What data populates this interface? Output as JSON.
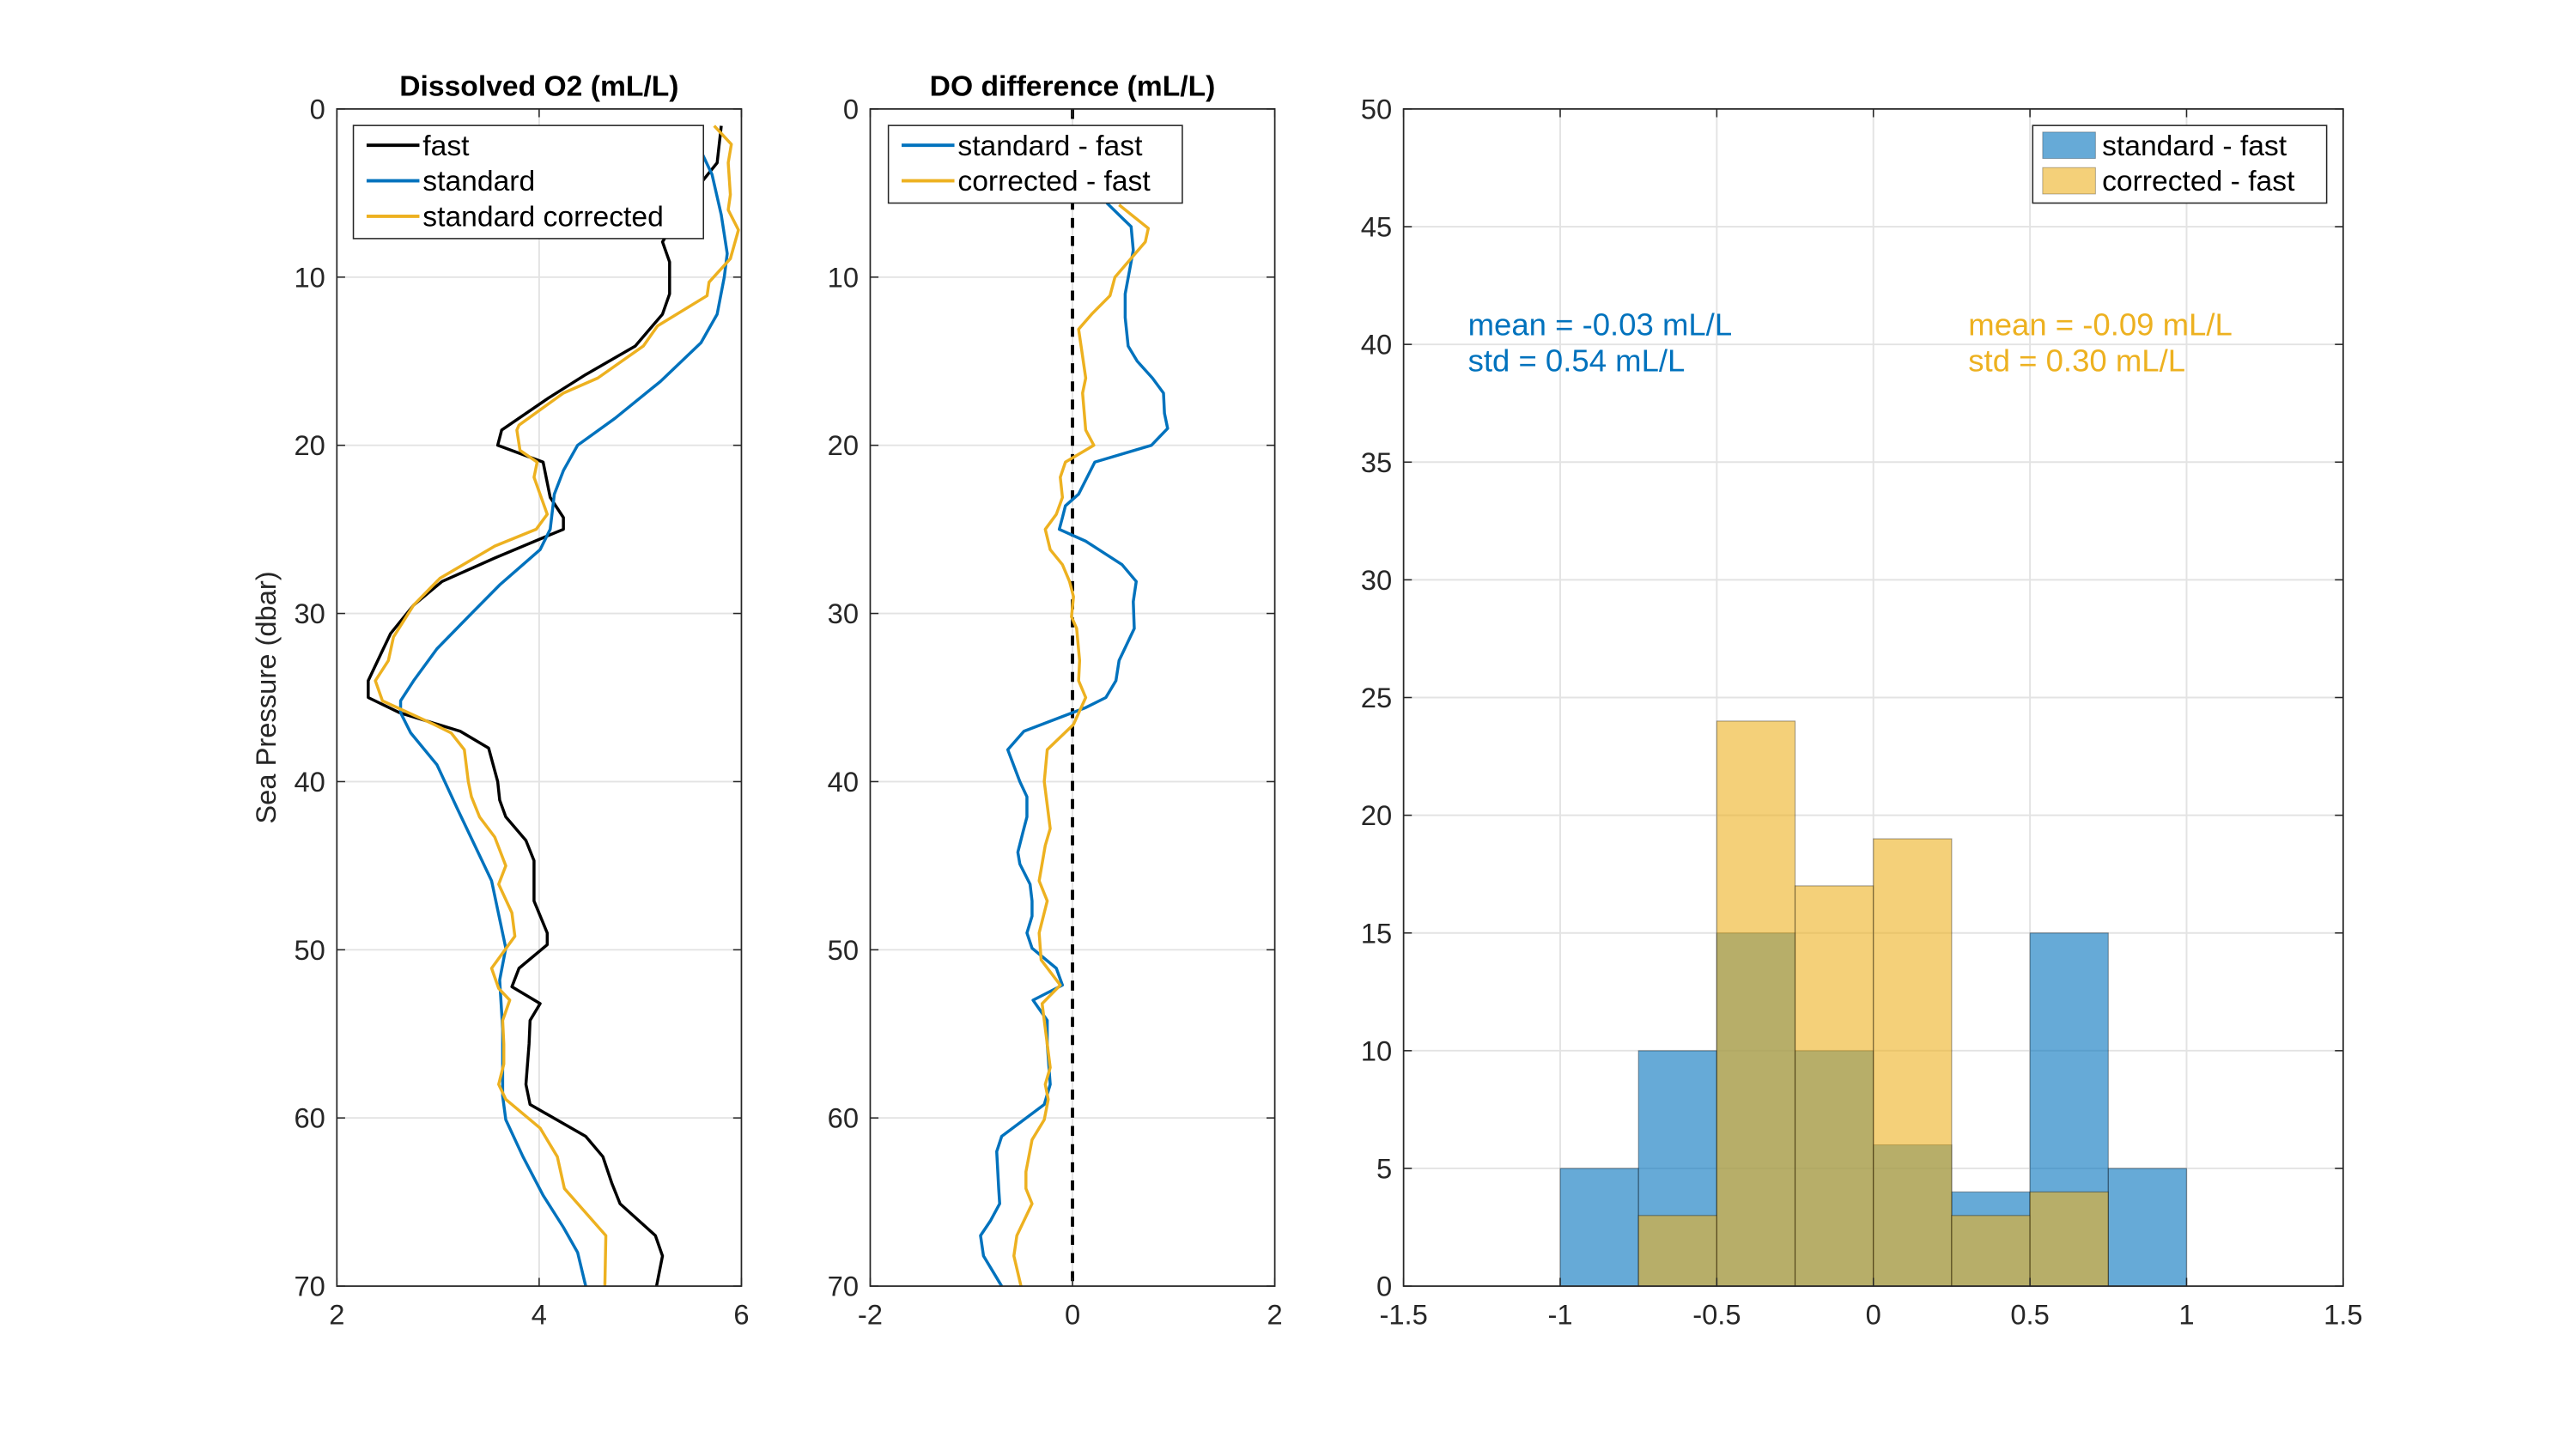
{
  "chart_data": [
    {
      "type": "line",
      "title": "Dissolved O2 (mL/L)",
      "xlabel": "",
      "ylabel": "Sea Pressure (dbar)",
      "xlim": [
        2,
        6
      ],
      "ylim": [
        0,
        70
      ],
      "y_reversed": true,
      "xticks": [
        2,
        4,
        6
      ],
      "yticks": [
        0,
        10,
        20,
        30,
        40,
        50,
        60,
        70
      ],
      "grid": true,
      "legend": "top-left",
      "series": [
        {
          "name": "fast",
          "color": "#000000",
          "points": [
            [
              5.8,
              1.0
            ],
            [
              5.76,
              3.2
            ],
            [
              5.6,
              4.4
            ],
            [
              5.22,
              7.9
            ],
            [
              5.29,
              9.1
            ],
            [
              5.29,
              11
            ],
            [
              5.22,
              12.2
            ],
            [
              4.95,
              14.1
            ],
            [
              4.46,
              15.8
            ],
            [
              4.09,
              17.2
            ],
            [
              3.63,
              19.1
            ],
            [
              3.59,
              20.0
            ],
            [
              4.04,
              21
            ],
            [
              4.11,
              23.1
            ],
            [
              4.24,
              24.3
            ],
            [
              4.24,
              25
            ],
            [
              4.04,
              25.5
            ],
            [
              3.56,
              26.7
            ],
            [
              3.04,
              28.1
            ],
            [
              2.76,
              29.5
            ],
            [
              2.53,
              31.2
            ],
            [
              2.42,
              32.6
            ],
            [
              2.31,
              34.0
            ],
            [
              2.31,
              35.0
            ],
            [
              2.62,
              35.9
            ],
            [
              3.22,
              37.0
            ],
            [
              3.5,
              38.0
            ],
            [
              3.59,
              40.0
            ],
            [
              3.61,
              41.1
            ],
            [
              3.67,
              42.1
            ],
            [
              3.87,
              43.5
            ],
            [
              3.95,
              44.7
            ],
            [
              3.95,
              45.9
            ],
            [
              3.95,
              47.1
            ],
            [
              4.08,
              49.0
            ],
            [
              4.08,
              49.7
            ],
            [
              3.8,
              51.1
            ],
            [
              3.73,
              52.2
            ],
            [
              4.01,
              53.2
            ],
            [
              3.91,
              54.2
            ],
            [
              3.9,
              55.6
            ],
            [
              3.87,
              58.0
            ],
            [
              3.91,
              59.2
            ],
            [
              4.46,
              61.1
            ],
            [
              4.63,
              62.3
            ],
            [
              4.72,
              63.9
            ],
            [
              4.8,
              65.1
            ],
            [
              5.15,
              67.0
            ],
            [
              5.22,
              68.2
            ],
            [
              5.16,
              70
            ]
          ]
        },
        {
          "name": "standard",
          "color": "#0072BD",
          "points": [
            [
              5.6,
              2.5
            ],
            [
              5.71,
              3.9
            ],
            [
              5.8,
              6.3
            ],
            [
              5.86,
              8.6
            ],
            [
              5.83,
              10
            ],
            [
              5.76,
              12.2
            ],
            [
              5.6,
              13.9
            ],
            [
              5.2,
              16.2
            ],
            [
              4.75,
              18.4
            ],
            [
              4.38,
              20
            ],
            [
              4.24,
              21.5
            ],
            [
              4.15,
              22.9
            ],
            [
              4.11,
              25
            ],
            [
              4.01,
              26.2
            ],
            [
              3.61,
              28.3
            ],
            [
              3.33,
              30
            ],
            [
              2.99,
              32.1
            ],
            [
              2.76,
              34.0
            ],
            [
              2.63,
              35.2
            ],
            [
              2.63,
              35.9
            ],
            [
              2.73,
              37.1
            ],
            [
              2.99,
              39.0
            ],
            [
              3.19,
              41.6
            ],
            [
              3.53,
              45.9
            ],
            [
              3.67,
              49.9
            ],
            [
              3.61,
              51.8
            ],
            [
              3.64,
              54.7
            ],
            [
              3.64,
              58.7
            ],
            [
              3.67,
              60.1
            ],
            [
              3.84,
              62.3
            ],
            [
              4.04,
              64.6
            ],
            [
              4.24,
              66.5
            ],
            [
              4.38,
              68.0
            ],
            [
              4.46,
              70
            ]
          ]
        },
        {
          "name": "standard corrected",
          "color": "#EDB120",
          "points": [
            [
              5.73,
              1.0
            ],
            [
              5.9,
              2.1
            ],
            [
              5.87,
              3.2
            ],
            [
              5.89,
              5.1
            ],
            [
              5.87,
              6.0
            ],
            [
              5.97,
              7.2
            ],
            [
              5.89,
              8.9
            ],
            [
              5.68,
              10.3
            ],
            [
              5.66,
              11.1
            ],
            [
              5.17,
              12.9
            ],
            [
              5.03,
              14.1
            ],
            [
              4.58,
              16.0
            ],
            [
              4.24,
              16.9
            ],
            [
              3.8,
              18.8
            ],
            [
              3.78,
              19.1
            ],
            [
              3.81,
              20.3
            ],
            [
              3.98,
              21
            ],
            [
              3.95,
              21.9
            ],
            [
              4.08,
              24.1
            ],
            [
              3.97,
              25
            ],
            [
              3.56,
              26
            ],
            [
              3.02,
              27.9
            ],
            [
              2.76,
              29.5
            ],
            [
              2.56,
              31.4
            ],
            [
              2.51,
              32.8
            ],
            [
              2.38,
              34.0
            ],
            [
              2.45,
              35.2
            ],
            [
              2.96,
              36.6
            ],
            [
              3.13,
              37.1
            ],
            [
              3.26,
              38.1
            ],
            [
              3.3,
              40
            ],
            [
              3.33,
              40.9
            ],
            [
              3.41,
              42.1
            ],
            [
              3.56,
              43.3
            ],
            [
              3.67,
              45.0
            ],
            [
              3.6,
              46.1
            ],
            [
              3.73,
              47.8
            ],
            [
              3.76,
              49.2
            ],
            [
              3.53,
              51.1
            ],
            [
              3.6,
              52.3
            ],
            [
              3.71,
              53.0
            ],
            [
              3.64,
              54.2
            ],
            [
              3.65,
              55.6
            ],
            [
              3.65,
              56.8
            ],
            [
              3.6,
              58.0
            ],
            [
              3.67,
              58.9
            ],
            [
              4.01,
              60.6
            ],
            [
              4.18,
              62.3
            ],
            [
              4.25,
              64.2
            ],
            [
              4.66,
              67.0
            ],
            [
              4.65,
              70
            ]
          ]
        }
      ]
    },
    {
      "type": "line",
      "title": "DO difference (mL/L)",
      "xlabel": "",
      "ylabel": "",
      "xlim": [
        -2,
        2
      ],
      "ylim": [
        0,
        70
      ],
      "y_reversed": true,
      "xticks": [
        -2,
        0,
        2
      ],
      "yticks": [
        0,
        10,
        20,
        30,
        40,
        50,
        60,
        70
      ],
      "grid": true,
      "legend": "top-left",
      "reference_line": {
        "x": 0,
        "style": "dashed",
        "color": "#000000"
      },
      "series": [
        {
          "name": "standard - fast",
          "color": "#0072BD",
          "points": [
            [
              0.34,
              5.6
            ],
            [
              0.58,
              7.0
            ],
            [
              0.6,
              8.4
            ],
            [
              0.52,
              11
            ],
            [
              0.52,
              12.4
            ],
            [
              0.55,
              14.1
            ],
            [
              0.64,
              15.0
            ],
            [
              0.79,
              16.0
            ],
            [
              0.9,
              16.9
            ],
            [
              0.91,
              18.1
            ],
            [
              0.94,
              19.0
            ],
            [
              0.78,
              20
            ],
            [
              0.22,
              21
            ],
            [
              0.06,
              22.9
            ],
            [
              -0.07,
              23.6
            ],
            [
              -0.1,
              24.3
            ],
            [
              -0.13,
              25
            ],
            [
              0.13,
              25.7
            ],
            [
              0.49,
              27.1
            ],
            [
              0.63,
              28.1
            ],
            [
              0.6,
              29.3
            ],
            [
              0.61,
              30.9
            ],
            [
              0.46,
              32.8
            ],
            [
              0.43,
              34.0
            ],
            [
              0.33,
              35.0
            ],
            [
              0.13,
              35.6
            ],
            [
              -0.48,
              37.0
            ],
            [
              -0.64,
              38.1
            ],
            [
              -0.52,
              40
            ],
            [
              -0.45,
              40.9
            ],
            [
              -0.45,
              42.1
            ],
            [
              -0.49,
              43.0
            ],
            [
              -0.54,
              44.2
            ],
            [
              -0.52,
              44.9
            ],
            [
              -0.42,
              46.1
            ],
            [
              -0.4,
              47.1
            ],
            [
              -0.4,
              48.0
            ],
            [
              -0.45,
              49.0
            ],
            [
              -0.4,
              49.9
            ],
            [
              -0.16,
              51.1
            ],
            [
              -0.1,
              52.1
            ],
            [
              -0.39,
              53.0
            ],
            [
              -0.25,
              54.2
            ],
            [
              -0.25,
              55.6
            ],
            [
              -0.22,
              58.0
            ],
            [
              -0.28,
              59.2
            ],
            [
              -0.7,
              61.1
            ],
            [
              -0.75,
              62.0
            ],
            [
              -0.73,
              64.2
            ],
            [
              -0.72,
              65.1
            ],
            [
              -0.81,
              66.1
            ],
            [
              -0.91,
              67.0
            ],
            [
              -0.88,
              68.2
            ],
            [
              -0.7,
              70
            ]
          ]
        },
        {
          "name": "corrected - fast",
          "color": "#EDB120",
          "points": [
            [
              0.46,
              5.7
            ],
            [
              0.75,
              7.1
            ],
            [
              0.72,
              7.9
            ],
            [
              0.42,
              10
            ],
            [
              0.37,
              11.1
            ],
            [
              0.19,
              12.2
            ],
            [
              0.06,
              13.1
            ],
            [
              0.09,
              14.3
            ],
            [
              0.13,
              16.0
            ],
            [
              0.1,
              16.9
            ],
            [
              0.13,
              19.1
            ],
            [
              0.21,
              20
            ],
            [
              -0.07,
              21
            ],
            [
              -0.12,
              21.9
            ],
            [
              -0.1,
              23.1
            ],
            [
              -0.16,
              24.1
            ],
            [
              -0.27,
              25.0
            ],
            [
              -0.22,
              26.2
            ],
            [
              -0.1,
              27.1
            ],
            [
              -0.03,
              28.1
            ],
            [
              0.01,
              29.0
            ],
            [
              -0.01,
              30.2
            ],
            [
              0.04,
              30.9
            ],
            [
              0.07,
              32.8
            ],
            [
              0.06,
              34.0
            ],
            [
              0.13,
              35.0
            ],
            [
              0.01,
              36.6
            ],
            [
              -0.25,
              38.1
            ],
            [
              -0.28,
              40
            ],
            [
              -0.22,
              42.8
            ],
            [
              -0.27,
              43.8
            ],
            [
              -0.33,
              45.9
            ],
            [
              -0.25,
              47.1
            ],
            [
              -0.33,
              49.0
            ],
            [
              -0.31,
              50.6
            ],
            [
              -0.12,
              52.1
            ],
            [
              -0.3,
              53.2
            ],
            [
              -0.22,
              57.0
            ],
            [
              -0.27,
              58.0
            ],
            [
              -0.24,
              58.9
            ],
            [
              -0.28,
              60.1
            ],
            [
              -0.4,
              61.3
            ],
            [
              -0.46,
              63.2
            ],
            [
              -0.46,
              64.2
            ],
            [
              -0.4,
              65.1
            ],
            [
              -0.55,
              67.0
            ],
            [
              -0.58,
              68.2
            ],
            [
              -0.51,
              70
            ]
          ]
        }
      ]
    },
    {
      "type": "bar",
      "subtype": "histogram",
      "title": "",
      "xlabel": "",
      "ylabel": "",
      "xlim": [
        -1.5,
        1.5
      ],
      "ylim": [
        0,
        50
      ],
      "xticks": [
        -1.5,
        -1,
        -0.5,
        0,
        0.5,
        1,
        1.5
      ],
      "yticks": [
        0,
        5,
        10,
        15,
        20,
        25,
        30,
        35,
        40,
        45,
        50
      ],
      "grid": true,
      "legend": "top-right",
      "bin_edges": [
        -1,
        -0.75,
        -0.5,
        -0.25,
        0,
        0.25,
        0.5,
        0.75,
        1
      ],
      "series": [
        {
          "name": "standard - fast",
          "color": "#0072BD",
          "values": [
            5,
            10,
            15,
            10,
            6,
            4,
            15,
            5
          ]
        },
        {
          "name": "corrected - fast",
          "color": "#EDB120",
          "values": [
            0,
            3,
            24,
            17,
            19,
            3,
            4,
            0
          ]
        }
      ],
      "annotations": [
        {
          "color": "#0072BD",
          "lines": [
            "mean = -0.03 mL/L",
            "std = 0.54 mL/L"
          ]
        },
        {
          "color": "#EDB120",
          "lines": [
            "mean = -0.09 mL/L",
            "std = 0.30 mL/L"
          ]
        }
      ]
    }
  ]
}
